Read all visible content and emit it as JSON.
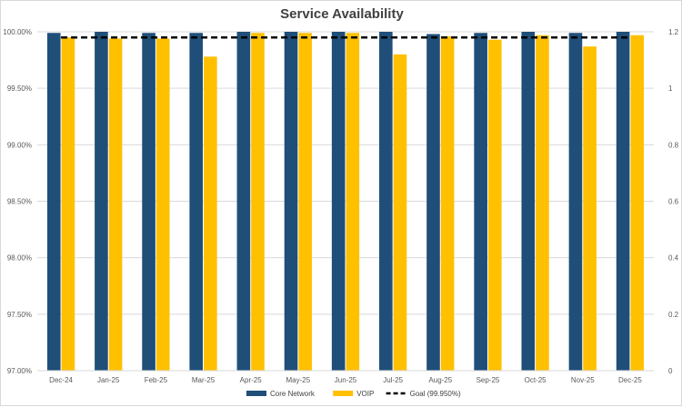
{
  "chart_data": {
    "type": "bar",
    "title": "Service Availability",
    "categories": [
      "Dec-24",
      "Jan-25",
      "Feb-25",
      "Mar-25",
      "Apr-25",
      "May-25",
      "Jun-25",
      "Jul-25",
      "Aug-25",
      "Sep-25",
      "Oct-25",
      "Nov-25",
      "Dec-25"
    ],
    "series": [
      {
        "name": "Core Network",
        "color": "#1f4e79",
        "values": [
          99.99,
          100.0,
          99.99,
          99.99,
          100.0,
          100.0,
          100.0,
          100.0,
          99.98,
          99.99,
          100.0,
          99.99,
          100.0
        ]
      },
      {
        "name": "VOIP",
        "color": "#ffc000",
        "values": [
          99.95,
          99.94,
          99.94,
          99.78,
          99.99,
          99.99,
          99.99,
          99.8,
          99.96,
          99.93,
          99.97,
          99.87,
          99.97
        ]
      }
    ],
    "goal_line": {
      "name": "Goal (99.950%)",
      "value": 1.18,
      "axis": "secondary",
      "color": "#000000"
    },
    "y_axis": {
      "ylim": [
        97.0,
        100.0
      ],
      "ticks": [
        "97.00%",
        "97.50%",
        "98.00%",
        "98.50%",
        "99.00%",
        "99.50%",
        "100.00%"
      ]
    },
    "y2_axis": {
      "ylim": [
        0,
        1.2
      ],
      "ticks": [
        "0",
        "0.2",
        "0.4",
        "0.6",
        "0.8",
        "1",
        "1.2"
      ]
    },
    "grid": true,
    "legend_position": "bottom"
  }
}
